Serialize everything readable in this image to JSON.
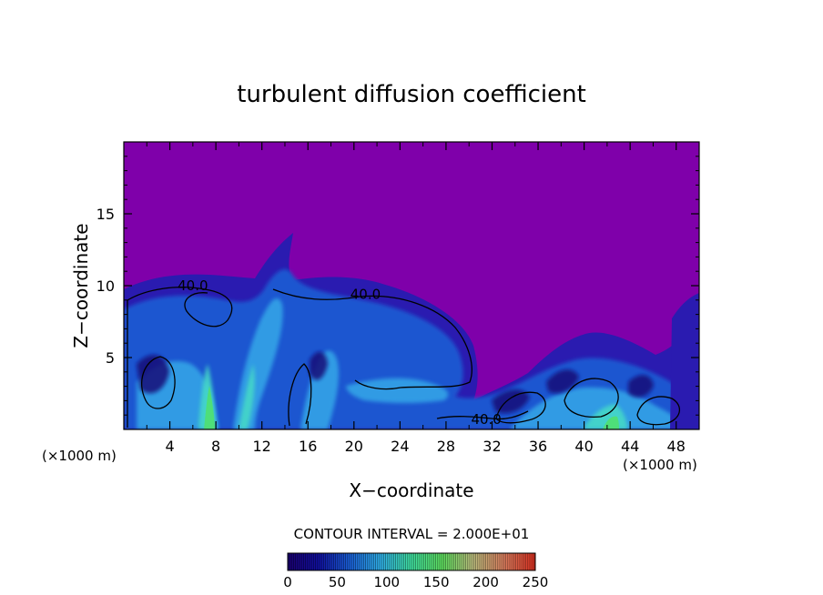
{
  "chart_data": {
    "type": "heatmap",
    "title": "turbulent diffusion coefficient",
    "xlabel": "X−coordinate",
    "ylabel": "Z−coordinate",
    "x_unit_label": "(×1000 m)",
    "x_unit_label_right": "(×1000 m)",
    "xlim": [
      0,
      50
    ],
    "ylim": [
      0,
      20
    ],
    "x_ticks": [
      4,
      8,
      12,
      16,
      20,
      24,
      28,
      32,
      36,
      40,
      44,
      48
    ],
    "y_ticks": [
      5,
      10,
      15
    ],
    "contour_interval_text": "CONTOUR INTERVAL = 2.000E+01",
    "contour_labels": [
      {
        "text": "40.0",
        "x": 6,
        "y": 10.0
      },
      {
        "text": "40.0",
        "x": 21,
        "y": 9.4
      },
      {
        "text": "40.0",
        "x": 31.5,
        "y": 0.7
      }
    ],
    "colorbar": {
      "min": 0,
      "max": 250,
      "ticks": [
        0,
        50,
        100,
        150,
        200,
        250
      ],
      "colors": [
        "#1a0070",
        "#1010a0",
        "#1a60d8",
        "#30b0e8",
        "#40e0a0",
        "#60e060",
        "#c0c080",
        "#e08060",
        "#e03020"
      ]
    },
    "background_color": "#7f00aa"
  }
}
